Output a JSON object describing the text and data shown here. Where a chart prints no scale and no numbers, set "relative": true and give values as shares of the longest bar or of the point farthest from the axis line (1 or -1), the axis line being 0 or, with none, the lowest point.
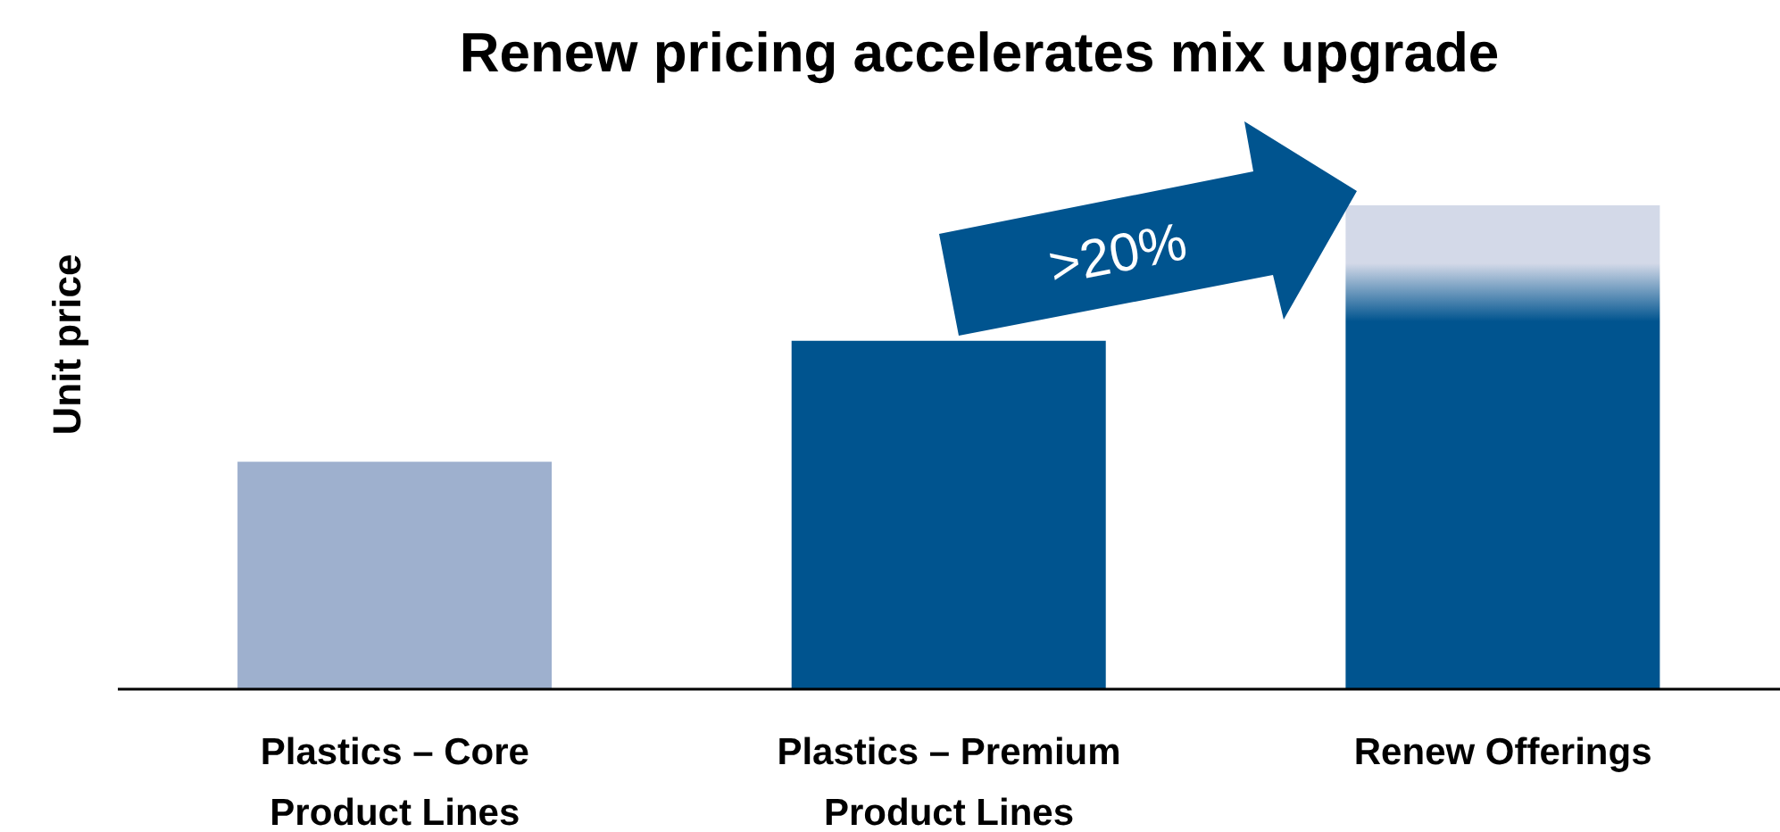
{
  "chart_data": {
    "type": "bar",
    "title": "Renew pricing accelerates mix upgrade",
    "ylabel": "Unit price",
    "categories": [
      "Plastics – Core Product Lines",
      "Plastics – Premium Product Lines",
      "Renew Offerings"
    ],
    "relative": true,
    "stacked": true,
    "series": [
      {
        "colors": [
          "#9eb0ce",
          "#00548f",
          "#00548f"
        ],
        "values": [
          0.47,
          0.72,
          0.76
        ]
      },
      {
        "color": "#d3d9e8",
        "values": [
          null,
          null,
          0.24
        ]
      }
    ],
    "annotations": [
      ">20%"
    ]
  }
}
